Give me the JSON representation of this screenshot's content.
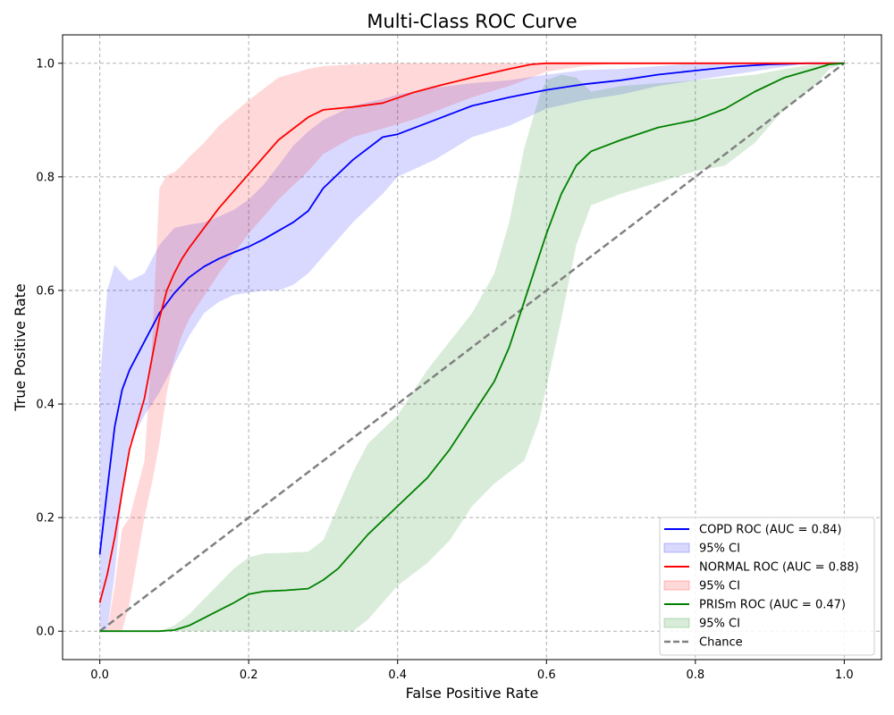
{
  "chart_data": {
    "type": "line",
    "title": "Multi-Class ROC Curve",
    "xlabel": "False Positive Rate",
    "ylabel": "True Positive Rate",
    "xlim": [
      -0.05,
      1.05
    ],
    "ylim": [
      -0.05,
      1.05
    ],
    "xticks": [
      0.0,
      0.2,
      0.4,
      0.6,
      0.8,
      1.0
    ],
    "yticks": [
      0.0,
      0.2,
      0.4,
      0.6,
      0.8,
      1.0
    ],
    "xtick_labels": [
      "0.0",
      "0.2",
      "0.4",
      "0.6",
      "0.8",
      "1.0"
    ],
    "ytick_labels": [
      "0.0",
      "0.2",
      "0.4",
      "0.6",
      "0.8",
      "1.0"
    ],
    "grid": true,
    "grid_style": "dashed",
    "legend_position": "lower-right",
    "series": [
      {
        "name": "COPD ROC (AUC = 0.84)",
        "color": "#0000ff",
        "ci_name": "95% CI",
        "ci_color": "#0000ff",
        "x": [
          0.0,
          0.01,
          0.02,
          0.03,
          0.04,
          0.06,
          0.08,
          0.1,
          0.12,
          0.14,
          0.16,
          0.18,
          0.2,
          0.22,
          0.24,
          0.26,
          0.28,
          0.3,
          0.34,
          0.38,
          0.4,
          0.45,
          0.5,
          0.55,
          0.6,
          0.65,
          0.7,
          0.75,
          0.8,
          0.85,
          0.9,
          0.95,
          1.0
        ],
        "y": [
          0.135,
          0.25,
          0.36,
          0.425,
          0.46,
          0.51,
          0.56,
          0.595,
          0.623,
          0.642,
          0.656,
          0.667,
          0.677,
          0.69,
          0.705,
          0.72,
          0.74,
          0.78,
          0.83,
          0.87,
          0.875,
          0.9,
          0.925,
          0.94,
          0.953,
          0.963,
          0.97,
          0.98,
          0.987,
          0.994,
          0.998,
          1.0,
          1.0
        ],
        "lower": [
          0.0,
          0.0,
          0.1,
          0.24,
          0.33,
          0.38,
          0.42,
          0.47,
          0.52,
          0.56,
          0.58,
          0.592,
          0.596,
          0.6,
          0.6,
          0.61,
          0.63,
          0.66,
          0.72,
          0.77,
          0.8,
          0.83,
          0.87,
          0.89,
          0.92,
          0.935,
          0.945,
          0.96,
          0.97,
          0.98,
          0.99,
          1.0,
          1.0
        ],
        "upper": [
          0.44,
          0.6,
          0.645,
          0.63,
          0.617,
          0.63,
          0.68,
          0.71,
          0.716,
          0.72,
          0.73,
          0.742,
          0.76,
          0.786,
          0.82,
          0.855,
          0.88,
          0.9,
          0.925,
          0.937,
          0.945,
          0.957,
          0.965,
          0.97,
          0.98,
          0.988,
          0.99,
          0.995,
          1.0,
          1.0,
          1.0,
          1.0,
          1.0
        ]
      },
      {
        "name": "NORMAL ROC (AUC = 0.88)",
        "color": "#ff0000",
        "ci_name": "95% CI",
        "ci_color": "#ff0000",
        "x": [
          0.0,
          0.01,
          0.02,
          0.03,
          0.04,
          0.06,
          0.07,
          0.08,
          0.09,
          0.1,
          0.11,
          0.12,
          0.14,
          0.16,
          0.2,
          0.24,
          0.28,
          0.3,
          0.34,
          0.38,
          0.42,
          0.46,
          0.5,
          0.55,
          0.58,
          0.6,
          0.65,
          0.7,
          0.8,
          0.9,
          1.0
        ],
        "y": [
          0.05,
          0.1,
          0.165,
          0.245,
          0.32,
          0.41,
          0.48,
          0.55,
          0.6,
          0.63,
          0.655,
          0.675,
          0.71,
          0.745,
          0.805,
          0.865,
          0.905,
          0.918,
          0.923,
          0.93,
          0.948,
          0.962,
          0.975,
          0.99,
          0.998,
          1.0,
          1.0,
          1.0,
          1.0,
          1.0,
          1.0
        ],
        "lower": [
          0.0,
          0.0,
          0.0,
          0.0,
          0.05,
          0.2,
          0.26,
          0.33,
          0.42,
          0.48,
          0.52,
          0.55,
          0.59,
          0.63,
          0.7,
          0.76,
          0.81,
          0.84,
          0.87,
          0.885,
          0.9,
          0.92,
          0.94,
          0.96,
          0.975,
          0.985,
          0.995,
          1.0,
          1.0,
          1.0,
          1.0
        ],
        "upper": [
          0.0,
          0.0,
          0.08,
          0.18,
          0.2,
          0.3,
          0.5,
          0.78,
          0.803,
          0.808,
          0.82,
          0.835,
          0.86,
          0.89,
          0.935,
          0.975,
          0.99,
          0.995,
          0.998,
          1.0,
          1.0,
          1.0,
          1.0,
          1.0,
          1.0,
          1.0,
          1.0,
          1.0,
          1.0,
          1.0,
          1.0
        ]
      },
      {
        "name": "PRISm ROC (AUC = 0.47)",
        "color": "#008000",
        "ci_name": "95% CI",
        "ci_color": "#008000",
        "x": [
          0.0,
          0.05,
          0.08,
          0.1,
          0.12,
          0.15,
          0.18,
          0.2,
          0.22,
          0.25,
          0.28,
          0.3,
          0.32,
          0.34,
          0.36,
          0.4,
          0.44,
          0.47,
          0.5,
          0.53,
          0.55,
          0.57,
          0.59,
          0.6,
          0.62,
          0.64,
          0.66,
          0.7,
          0.75,
          0.8,
          0.84,
          0.88,
          0.92,
          0.96,
          0.98,
          1.0
        ],
        "y": [
          0.0,
          0.0,
          0.0,
          0.002,
          0.01,
          0.03,
          0.05,
          0.065,
          0.07,
          0.072,
          0.075,
          0.09,
          0.11,
          0.14,
          0.17,
          0.22,
          0.27,
          0.32,
          0.38,
          0.44,
          0.5,
          0.58,
          0.66,
          0.7,
          0.77,
          0.82,
          0.845,
          0.865,
          0.887,
          0.9,
          0.92,
          0.95,
          0.975,
          0.99,
          0.998,
          1.0
        ],
        "lower": [
          0.0,
          0.0,
          0.0,
          0.0,
          0.0,
          0.0,
          0.0,
          0.0,
          0.0,
          0.0,
          0.0,
          0.0,
          0.0,
          0.0,
          0.02,
          0.08,
          0.12,
          0.16,
          0.22,
          0.26,
          0.28,
          0.3,
          0.37,
          0.43,
          0.55,
          0.68,
          0.75,
          0.77,
          0.79,
          0.81,
          0.82,
          0.86,
          0.92,
          0.96,
          0.99,
          1.0
        ],
        "upper": [
          0.0,
          0.0,
          0.0,
          0.01,
          0.03,
          0.07,
          0.11,
          0.13,
          0.137,
          0.138,
          0.14,
          0.16,
          0.22,
          0.28,
          0.33,
          0.38,
          0.46,
          0.51,
          0.56,
          0.63,
          0.72,
          0.85,
          0.94,
          0.97,
          0.98,
          0.975,
          0.95,
          0.96,
          0.965,
          0.97,
          0.975,
          0.98,
          0.99,
          0.998,
          1.0,
          1.0
        ]
      }
    ],
    "reference_line": {
      "name": "Chance",
      "color": "#808080",
      "x": [
        0.0,
        1.0
      ],
      "y": [
        0.0,
        1.0
      ]
    }
  }
}
